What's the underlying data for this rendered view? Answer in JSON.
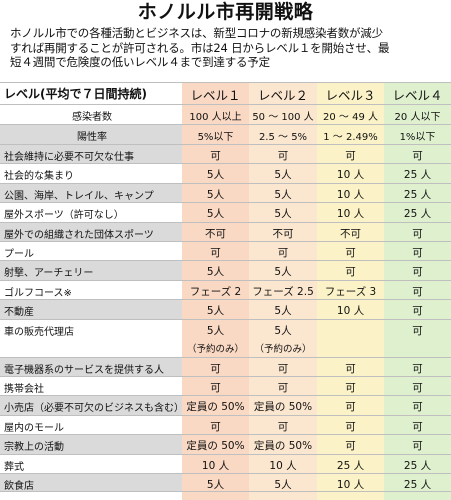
{
  "title": "ホノルル市再開戦略",
  "intro": [
    "ホノルル市での各種活動とビジネスは、新型コロナの新規感染者数が減少",
    "すれば再開することが許可される。市は24 日からレベル１を開始させ、最",
    "短４週間で危険度の低いレベル４まで到達する予定"
  ],
  "colors": {
    "level1": "#f9d8c4",
    "level2": "#fbe6cf",
    "level3": "#fbf3c7",
    "level4": "#dff0cf",
    "label_shade": "#dadada"
  },
  "table": {
    "header_label": "レベル(平均で７日間持続)",
    "levels": [
      "レベル１",
      "レベル２",
      "レベル３",
      "レベル４"
    ],
    "criteria": [
      {
        "label": "感染者数",
        "values": [
          "100 人以上",
          "50 ～ 100 人",
          "20 ～ 49 人",
          "20 人以下"
        ]
      },
      {
        "label": "陽性率",
        "values": [
          "5%以下",
          "2.5 ～ 5%",
          "1 ～ 2.49%",
          "1%以下"
        ]
      }
    ],
    "rows": [
      {
        "label": "社会維持に必要不可欠な仕事",
        "values": [
          "可",
          "可",
          "可",
          "可"
        ]
      },
      {
        "label": "社会的な集まり",
        "values": [
          "5人",
          "5人",
          "10 人",
          "25 人"
        ]
      },
      {
        "label": "公園、海岸、トレイル、キャンプ",
        "values": [
          "5人",
          "5人",
          "10 人",
          "25 人"
        ]
      },
      {
        "label": "屋外スポーツ（許可なし）",
        "values": [
          "5人",
          "5人",
          "10 人",
          "25 人"
        ]
      },
      {
        "label": "屋外での組織された団体スポーツ",
        "values": [
          "不可",
          "不可",
          "不可",
          "可"
        ]
      },
      {
        "label": "プール",
        "values": [
          "可",
          "可",
          "可",
          "可"
        ]
      },
      {
        "label": "射撃、アーチェリー",
        "values": [
          "5人",
          "5人",
          "可",
          "可"
        ]
      },
      {
        "label": "ゴルフコース※",
        "values": [
          "フェーズ 2",
          "フェーズ 2.5",
          "フェーズ 3",
          "可"
        ]
      },
      {
        "label": "不動産",
        "values": [
          "5人",
          "5人",
          "10 人",
          "可"
        ]
      },
      {
        "label": "車の販売代理店",
        "values": [
          "5人",
          "5人",
          "",
          "可"
        ],
        "notes": [
          "（予約のみ）",
          "（予約のみ）",
          "",
          ""
        ]
      },
      {
        "label": "電子機器系のサービスを提供する人",
        "values": [
          "可",
          "可",
          "可",
          "可"
        ]
      },
      {
        "label": "携帯会社",
        "values": [
          "可",
          "可",
          "可",
          "可"
        ]
      },
      {
        "label": "小売店（必要不可欠のビジネスも含む）",
        "values": [
          "定員の 50%",
          "定員の 50%",
          "可",
          "可"
        ]
      },
      {
        "label": "屋内のモール",
        "values": [
          "可",
          "可",
          "可",
          "可"
        ]
      },
      {
        "label": "宗教上の活動",
        "values": [
          "定員の 50%",
          "定員の 50%",
          "可",
          "可"
        ]
      },
      {
        "label": "葬式",
        "values": [
          "10 人",
          "10 人",
          "25 人",
          "25 人"
        ]
      },
      {
        "label": "飲食店",
        "values": [
          "5人",
          "5人",
          "10 人",
          "25 人"
        ]
      }
    ]
  }
}
